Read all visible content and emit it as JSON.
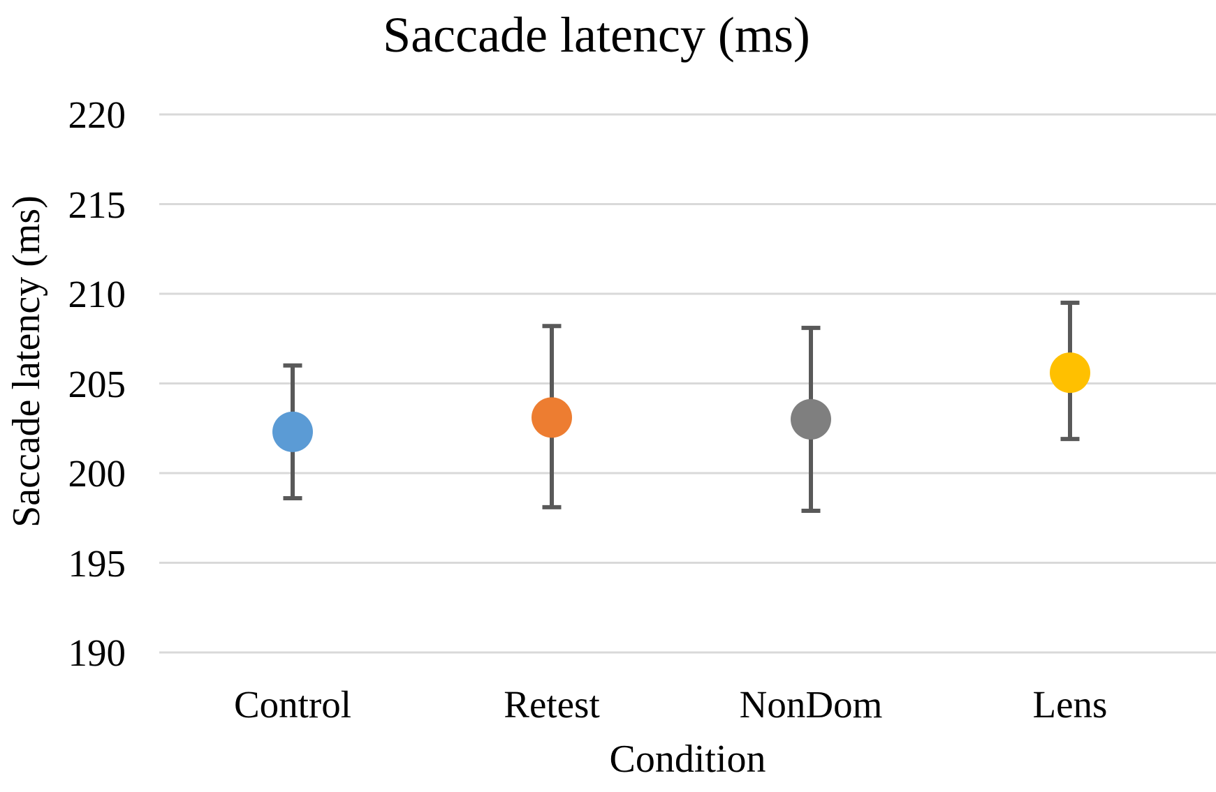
{
  "chart_data": {
    "type": "scatter",
    "title": "Saccade latency (ms)",
    "xlabel": "Condition",
    "ylabel": "Saccade latency (ms)",
    "ylim": [
      190,
      220
    ],
    "yticks": [
      190,
      195,
      200,
      205,
      210,
      215,
      220
    ],
    "grid": true,
    "legend": "none",
    "categories": [
      "Control",
      "Retest",
      "NonDom",
      "Lens"
    ],
    "series": [
      {
        "name": "Saccade latency (ms)",
        "points": [
          {
            "category": "Control",
            "mean": 202.3,
            "err_low": 198.6,
            "err_high": 206.0,
            "color": "#5B9BD5"
          },
          {
            "category": "Retest",
            "mean": 203.1,
            "err_low": 198.1,
            "err_high": 208.2,
            "color": "#ED7D31"
          },
          {
            "category": "NonDom",
            "mean": 203.0,
            "err_low": 197.9,
            "err_high": 208.1,
            "color": "#7F7F7F"
          },
          {
            "category": "Lens",
            "mean": 205.6,
            "err_low": 201.9,
            "err_high": 209.5,
            "color": "#FFC000"
          }
        ]
      }
    ],
    "colors": {
      "gridline": "#D9D9D9",
      "error_bar": "#595959",
      "text": "#000000",
      "background": "#FFFFFF"
    }
  }
}
